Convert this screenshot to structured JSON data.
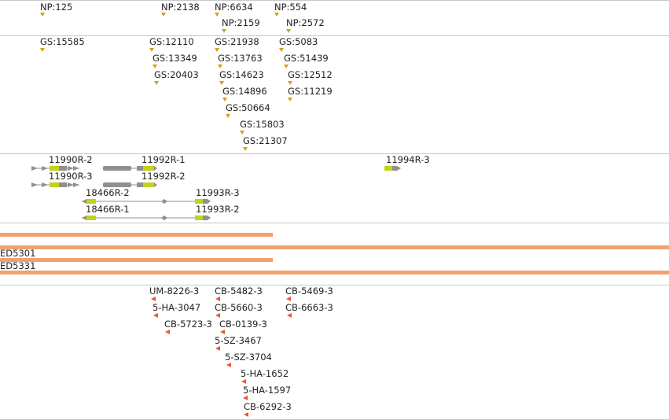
{
  "colors": {
    "np_marker": "#d4a017",
    "gs_marker": "#d4a017",
    "transcript_utr": "#909090",
    "transcript_cds": "#c2d21c",
    "insertion": "#f2a070",
    "allele_marker": "#ee5533",
    "separator": "#c8c8c8"
  },
  "np_track": {
    "features": [
      {
        "label": "NP:125"
      },
      {
        "label": "NP:2138"
      },
      {
        "label": "NP:6634"
      },
      {
        "label": "NP:554"
      },
      {
        "label": "NP:2159"
      },
      {
        "label": "NP:2572"
      }
    ]
  },
  "gs_track": {
    "features": [
      {
        "label": "GS:15585"
      },
      {
        "label": "GS:12110"
      },
      {
        "label": "GS:21938"
      },
      {
        "label": "GS:5083"
      },
      {
        "label": "GS:13349"
      },
      {
        "label": "GS:13763"
      },
      {
        "label": "GS:51439"
      },
      {
        "label": "GS:20403"
      },
      {
        "label": "GS:14623"
      },
      {
        "label": "GS:12512"
      },
      {
        "label": "GS:14896"
      },
      {
        "label": "GS:11219"
      },
      {
        "label": "GS:50664"
      },
      {
        "label": "GS:15803"
      },
      {
        "label": "GS:21307"
      }
    ]
  },
  "transcript_track": {
    "transcripts": [
      {
        "label": "11990R-2"
      },
      {
        "label": "11990R-3"
      },
      {
        "label": "11992R-1"
      },
      {
        "label": "11992R-2"
      },
      {
        "label": "11994R-3"
      },
      {
        "label": "18466R-2"
      },
      {
        "label": "18466R-1"
      },
      {
        "label": "11993R-3"
      },
      {
        "label": "11993R-2"
      }
    ]
  },
  "insertion_track": {
    "insertions": [
      {
        "label": "ED5301"
      },
      {
        "label": "ED5331"
      }
    ]
  },
  "allele_track": {
    "features": [
      {
        "label": "UM-8226-3"
      },
      {
        "label": "CB-5482-3"
      },
      {
        "label": "CB-5469-3"
      },
      {
        "label": "5-HA-3047"
      },
      {
        "label": "CB-5660-3"
      },
      {
        "label": "CB-6663-3"
      },
      {
        "label": "CB-5723-3"
      },
      {
        "label": "CB-0139-3"
      },
      {
        "label": "5-SZ-3467"
      },
      {
        "label": "5-SZ-3704"
      },
      {
        "label": "5-HA-1652"
      },
      {
        "label": "5-HA-1597"
      },
      {
        "label": "CB-6292-3"
      }
    ]
  }
}
